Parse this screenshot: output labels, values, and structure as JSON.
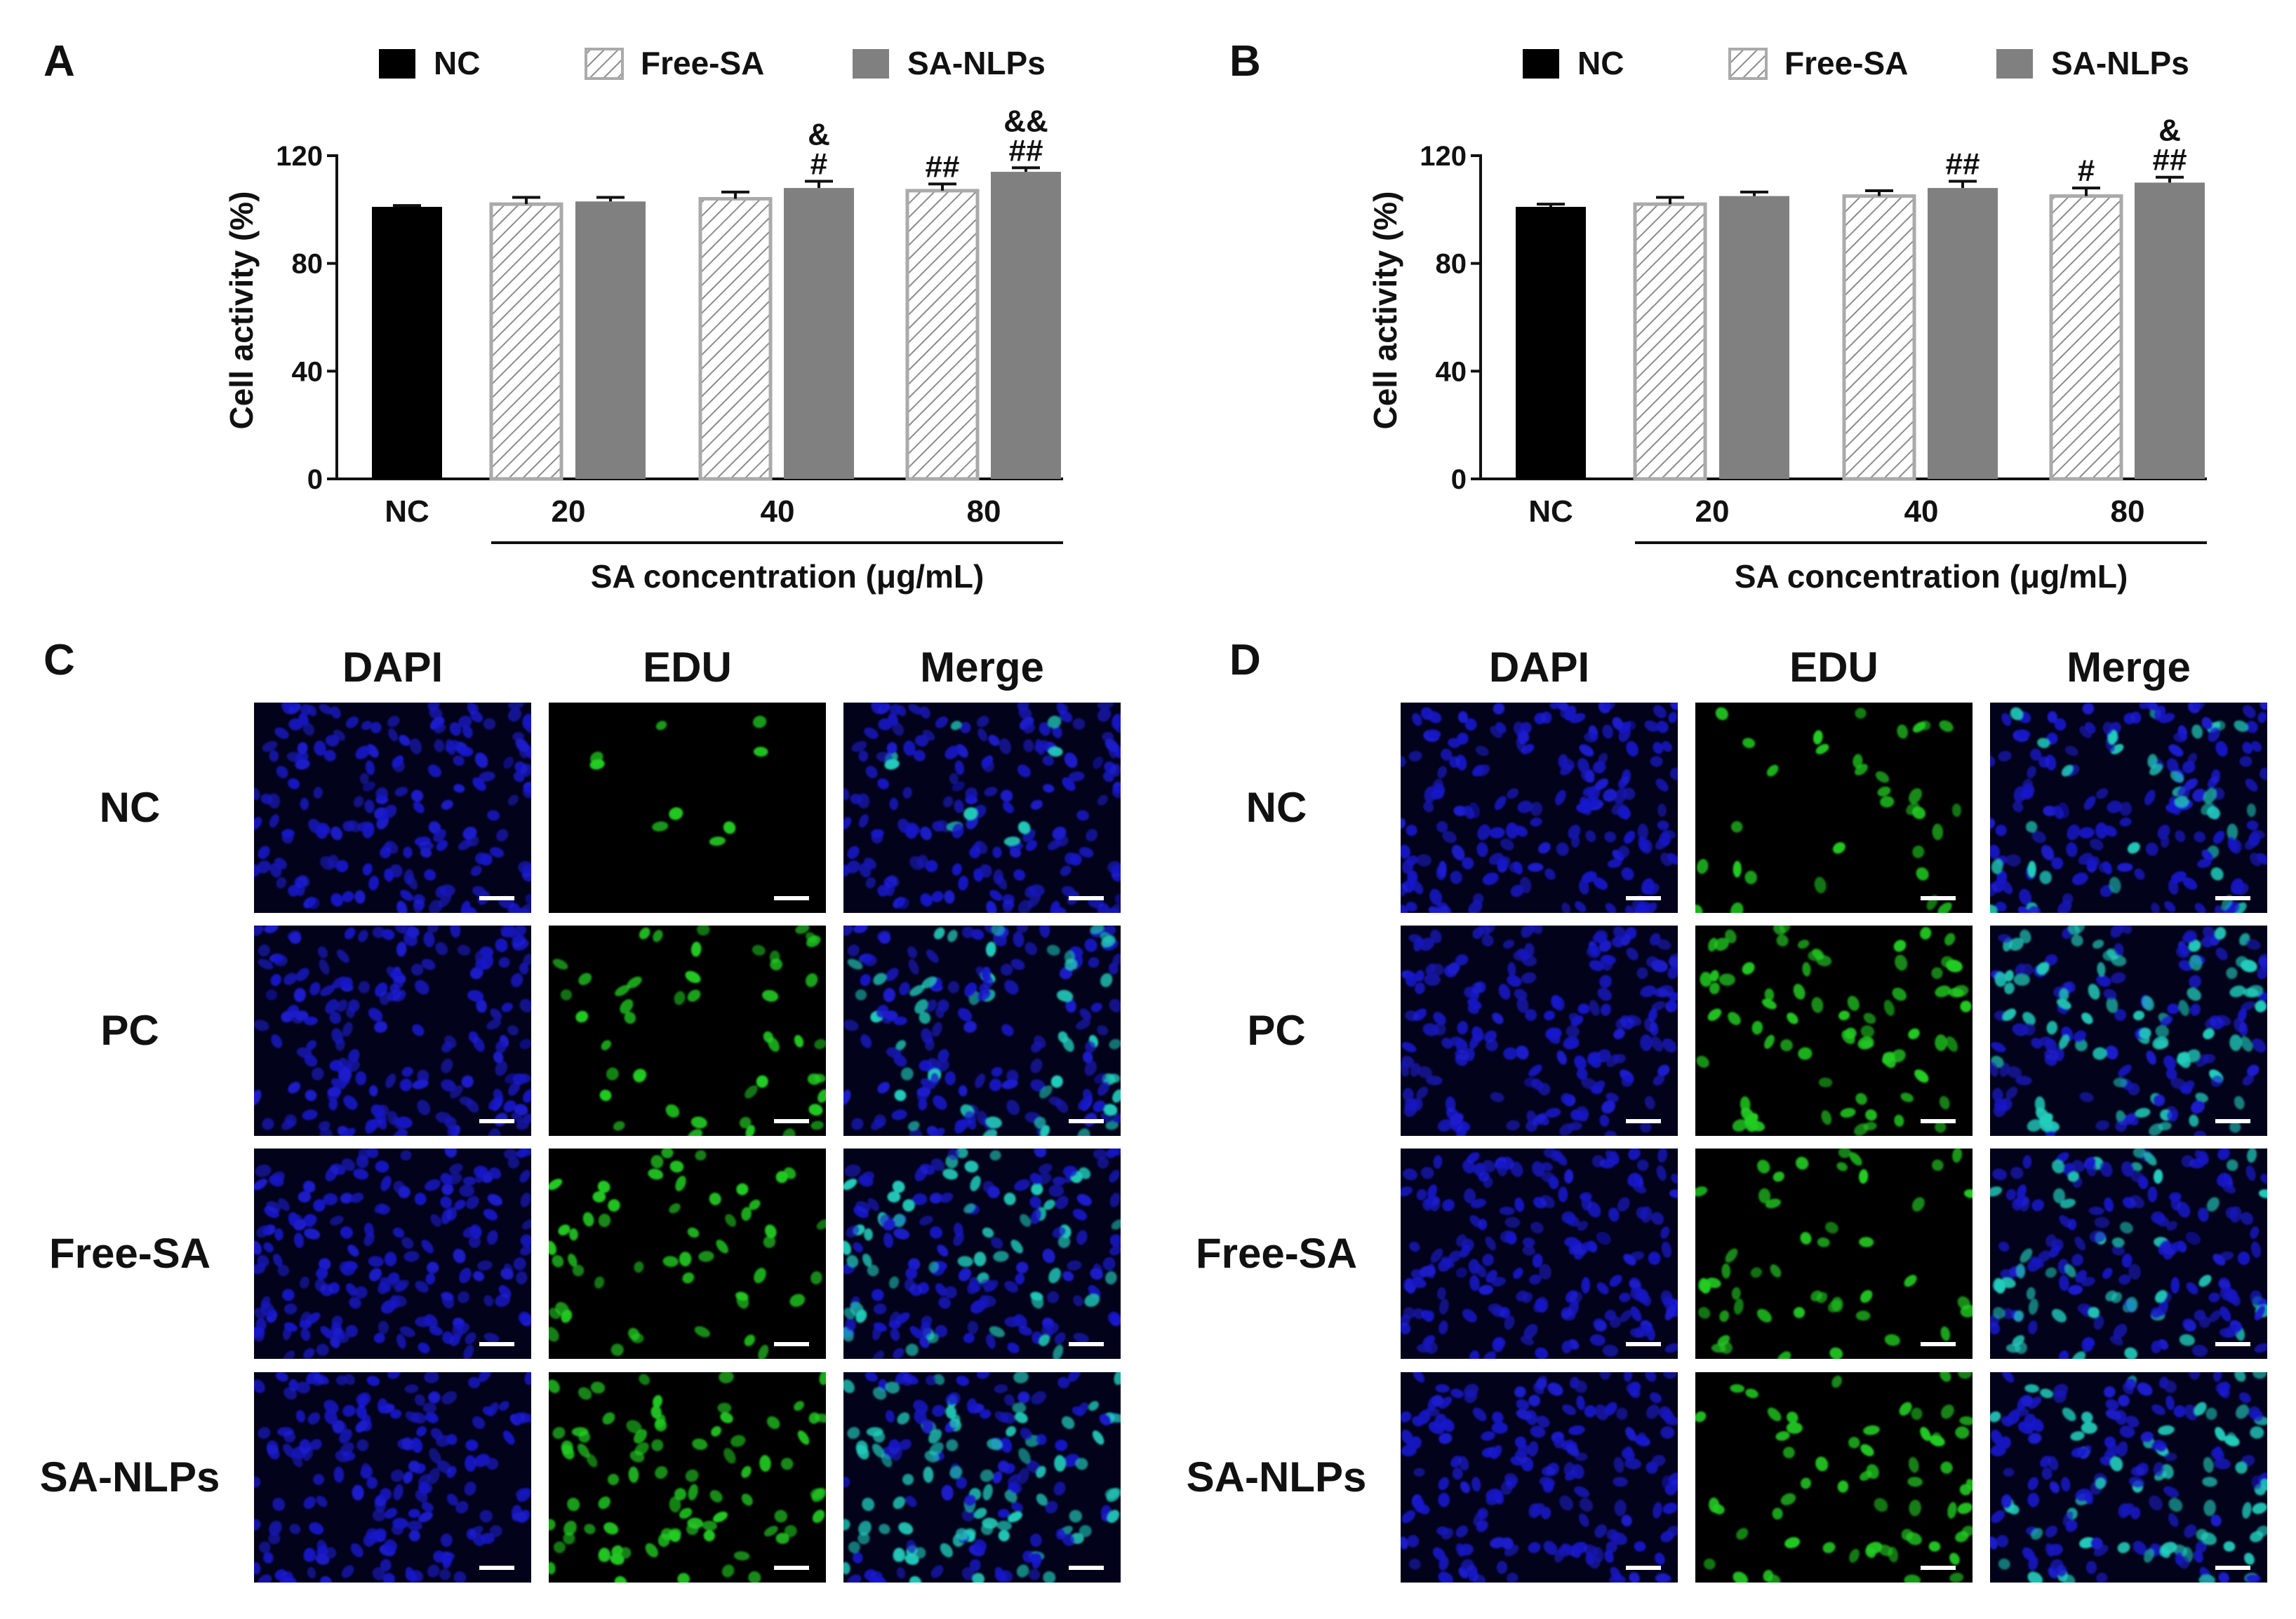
{
  "panels": {
    "A": "A",
    "B": "B",
    "C": "C",
    "D": "D"
  },
  "colors": {
    "nc": "#000000",
    "free_sa_stroke": "#aaaaaa",
    "free_sa_hatch": "#8c8c8c",
    "sa_nlps": "#808080",
    "dapi": "#1a1acc",
    "edu": "#22cc22",
    "merge": "#22ccbb"
  },
  "chart_data": [
    {
      "panel": "A",
      "type": "bar",
      "ylabel": "Cell activity (%)",
      "xlabel": "SA concentration (μg/mL)",
      "ylim": [
        0,
        120
      ],
      "yticks": [
        "0",
        "40",
        "80",
        "120"
      ],
      "grid": false,
      "legend_position": "top",
      "legend": [
        "NC",
        "Free-SA",
        "SA-NLPs"
      ],
      "categories": [
        "NC",
        "20",
        "40",
        "80"
      ],
      "series": [
        {
          "name": "NC",
          "values": [
            101,
            null,
            null,
            null
          ],
          "errors": [
            0.5,
            null,
            null,
            null
          ]
        },
        {
          "name": "Free-SA",
          "values": [
            null,
            102,
            104,
            107
          ],
          "errors": [
            null,
            2.5,
            2.5,
            2.5
          ]
        },
        {
          "name": "SA-NLPs",
          "values": [
            null,
            103,
            108,
            114
          ],
          "errors": [
            null,
            1.5,
            2.5,
            1.5
          ]
        }
      ],
      "annotations": [
        {
          "category": "40",
          "series": "SA-NLPs",
          "lines": [
            "&",
            "#"
          ]
        },
        {
          "category": "80",
          "series": "Free-SA",
          "lines": [
            "##"
          ]
        },
        {
          "category": "80",
          "series": "SA-NLPs",
          "lines": [
            "&&",
            "##"
          ]
        }
      ]
    },
    {
      "panel": "B",
      "type": "bar",
      "ylabel": "Cell activity (%)",
      "xlabel": "SA concentration (μg/mL)",
      "ylim": [
        0,
        120
      ],
      "yticks": [
        "0",
        "40",
        "80",
        "120"
      ],
      "grid": false,
      "legend_position": "top",
      "legend": [
        "NC",
        "Free-SA",
        "SA-NLPs"
      ],
      "categories": [
        "NC",
        "20",
        "40",
        "80"
      ],
      "series": [
        {
          "name": "NC",
          "values": [
            101,
            null,
            null,
            null
          ],
          "errors": [
            1,
            null,
            null,
            null
          ]
        },
        {
          "name": "Free-SA",
          "values": [
            null,
            102,
            105,
            105
          ],
          "errors": [
            null,
            2.5,
            2,
            3
          ]
        },
        {
          "name": "SA-NLPs",
          "values": [
            null,
            105,
            108,
            110
          ],
          "errors": [
            null,
            1.5,
            2.5,
            2
          ]
        }
      ],
      "annotations": [
        {
          "category": "40",
          "series": "SA-NLPs",
          "lines": [
            "##"
          ]
        },
        {
          "category": "80",
          "series": "Free-SA",
          "lines": [
            "#"
          ]
        },
        {
          "category": "80",
          "series": "SA-NLPs",
          "lines": [
            "&",
            "##"
          ]
        }
      ]
    }
  ],
  "micrographs": [
    {
      "panel": "C",
      "columns": [
        "DAPI",
        "EDU",
        "Merge"
      ],
      "rows": [
        "NC",
        "PC",
        "Free-SA",
        "SA-NLPs"
      ],
      "edu_intensity": [
        0.15,
        0.55,
        0.6,
        0.85
      ]
    },
    {
      "panel": "D",
      "columns": [
        "DAPI",
        "EDU",
        "Merge"
      ],
      "rows": [
        "NC",
        "PC",
        "Free-SA",
        "SA-NLPs"
      ],
      "edu_intensity": [
        0.35,
        0.7,
        0.55,
        0.75
      ]
    }
  ]
}
